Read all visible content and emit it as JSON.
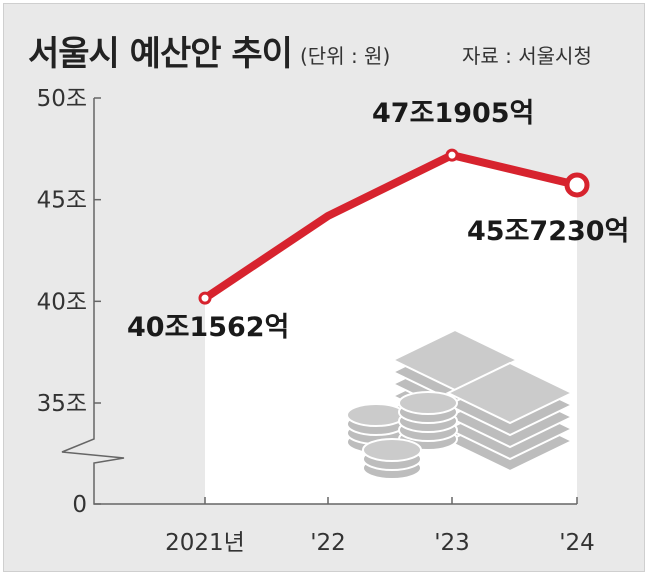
{
  "title": "서울시 예산안 추이",
  "unit_note": "(단위 : 원)",
  "source": "자료 : 서울시청",
  "colors": {
    "line": "#d7232e",
    "panel": "#ffffff",
    "background": "#e9e9e9"
  },
  "icon": "coin-stacks-icon",
  "chart_data": {
    "type": "line",
    "title": "서울시 예산안 추이",
    "categories": [
      "2021년",
      "'22",
      "'23",
      "'24"
    ],
    "y_tick_labels": [
      "0",
      "35조",
      "40조",
      "45조",
      "50조"
    ],
    "y_axis_break": true,
    "ylim": [
      35,
      50
    ],
    "series": [
      {
        "values": [
          40.1562,
          44.2,
          47.1905,
          45.723
        ],
        "data_labels": [
          "40조1562억",
          "",
          "47조1905억",
          "45조7230억"
        ]
      }
    ],
    "grid": false,
    "legend": "none"
  }
}
